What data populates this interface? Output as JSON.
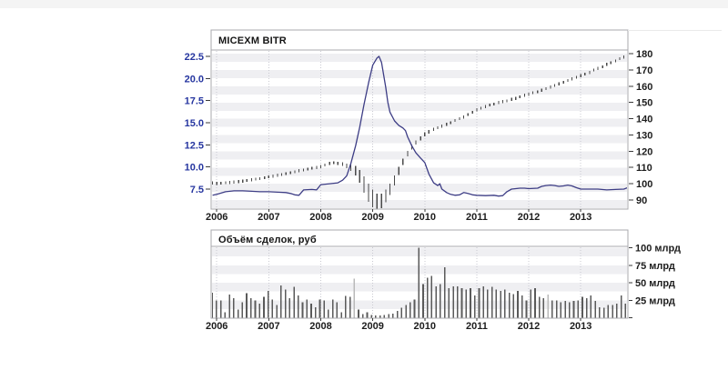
{
  "page": {
    "background": "#ffffff",
    "top_strip_color": "#f4f4f4"
  },
  "chart_data": [
    {
      "type": "line",
      "title": "MICEXM BITR",
      "x_tick_labels": [
        "2006",
        "2007",
        "2008",
        "2009",
        "2010",
        "2011",
        "2012",
        "2013"
      ],
      "x_tick_values": [
        2006,
        2007,
        2008,
        2009,
        2010,
        2011,
        2012,
        2013
      ],
      "x_range": [
        2005.9,
        2013.95
      ],
      "grid": "vertical-dotted, horizontal zebra stripes",
      "left_axis": {
        "tick_labels": [
          "22.5",
          "20.0",
          "17.5",
          "15.0",
          "12.5",
          "10.0",
          "7.5"
        ],
        "tick_values": [
          22.5,
          20.0,
          17.5,
          15.0,
          12.5,
          10.0,
          7.5
        ],
        "range": [
          5.4,
          23.2
        ],
        "label_color": "#2636a0"
      },
      "right_axis": {
        "tick_labels": [
          "180",
          "170",
          "160",
          "150",
          "140",
          "130",
          "120",
          "110",
          "100",
          "90"
        ],
        "tick_values": [
          180,
          170,
          160,
          150,
          140,
          130,
          120,
          110,
          100,
          90
        ],
        "range": [
          84,
          185
        ],
        "label_color": "#1c1c1c"
      },
      "series": [
        {
          "name": "rate-line",
          "style": "solid-line",
          "axis": "left",
          "color": "#3d3d85",
          "points": [
            [
              2005.92,
              6.8
            ],
            [
              2006.0,
              6.9
            ],
            [
              2006.17,
              7.2
            ],
            [
              2006.33,
              7.3
            ],
            [
              2006.5,
              7.3
            ],
            [
              2006.67,
              7.25
            ],
            [
              2006.83,
              7.2
            ],
            [
              2007.0,
              7.2
            ],
            [
              2007.17,
              7.15
            ],
            [
              2007.33,
              7.1
            ],
            [
              2007.42,
              7.0
            ],
            [
              2007.5,
              6.85
            ],
            [
              2007.58,
              6.8
            ],
            [
              2007.67,
              7.4
            ],
            [
              2007.83,
              7.45
            ],
            [
              2007.92,
              7.4
            ],
            [
              2008.0,
              8.0
            ],
            [
              2008.17,
              8.1
            ],
            [
              2008.33,
              8.2
            ],
            [
              2008.42,
              8.5
            ],
            [
              2008.5,
              9.0
            ],
            [
              2008.58,
              10.4
            ],
            [
              2008.67,
              12.4
            ],
            [
              2008.75,
              14.5
            ],
            [
              2008.83,
              17.0
            ],
            [
              2008.92,
              19.5
            ],
            [
              2009.0,
              21.5
            ],
            [
              2009.08,
              22.3
            ],
            [
              2009.12,
              22.5
            ],
            [
              2009.17,
              21.8
            ],
            [
              2009.25,
              19.0
            ],
            [
              2009.29,
              17.3
            ],
            [
              2009.33,
              16.2
            ],
            [
              2009.42,
              15.2
            ],
            [
              2009.5,
              14.7
            ],
            [
              2009.58,
              14.4
            ],
            [
              2009.63,
              14.1
            ],
            [
              2009.67,
              13.4
            ],
            [
              2009.75,
              12.4
            ],
            [
              2009.83,
              11.6
            ],
            [
              2009.92,
              11.0
            ],
            [
              2010.0,
              10.5
            ],
            [
              2010.08,
              9.2
            ],
            [
              2010.17,
              8.2
            ],
            [
              2010.25,
              7.9
            ],
            [
              2010.29,
              8.1
            ],
            [
              2010.33,
              7.5
            ],
            [
              2010.42,
              7.1
            ],
            [
              2010.5,
              6.9
            ],
            [
              2010.58,
              6.8
            ],
            [
              2010.67,
              6.85
            ],
            [
              2010.75,
              7.1
            ],
            [
              2010.83,
              7.0
            ],
            [
              2010.92,
              6.85
            ],
            [
              2011.0,
              6.8
            ],
            [
              2011.17,
              6.75
            ],
            [
              2011.33,
              6.8
            ],
            [
              2011.42,
              6.7
            ],
            [
              2011.5,
              6.75
            ],
            [
              2011.58,
              7.2
            ],
            [
              2011.67,
              7.5
            ],
            [
              2011.75,
              7.55
            ],
            [
              2011.83,
              7.6
            ],
            [
              2011.92,
              7.6
            ],
            [
              2012.0,
              7.55
            ],
            [
              2012.17,
              7.6
            ],
            [
              2012.25,
              7.8
            ],
            [
              2012.33,
              7.9
            ],
            [
              2012.42,
              7.95
            ],
            [
              2012.5,
              7.9
            ],
            [
              2012.58,
              7.8
            ],
            [
              2012.67,
              7.85
            ],
            [
              2012.75,
              7.95
            ],
            [
              2012.83,
              7.85
            ],
            [
              2012.92,
              7.65
            ],
            [
              2013.0,
              7.5
            ],
            [
              2013.17,
              7.5
            ],
            [
              2013.33,
              7.5
            ],
            [
              2013.5,
              7.4
            ],
            [
              2013.67,
              7.45
            ],
            [
              2013.83,
              7.5
            ],
            [
              2013.92,
              7.7
            ]
          ]
        },
        {
          "name": "index-dashes",
          "style": "vertical-dashes",
          "axis": "right",
          "color": "#4a4a4a",
          "default_dash_range": 1.8,
          "points": [
            [
              2005.92,
              100.5
            ],
            [
              2006.0,
              100.2
            ],
            [
              2006.08,
              100.4
            ],
            [
              2006.17,
              100.6
            ],
            [
              2006.25,
              100.8
            ],
            [
              2006.33,
              101
            ],
            [
              2006.42,
              101.3
            ],
            [
              2006.5,
              101.6
            ],
            [
              2006.58,
              102
            ],
            [
              2006.67,
              102.4
            ],
            [
              2006.75,
              102.8
            ],
            [
              2006.83,
              103.2
            ],
            [
              2006.92,
              103.7
            ],
            [
              2007.0,
              104.2
            ],
            [
              2007.08,
              104.7
            ],
            [
              2007.17,
              105.2
            ],
            [
              2007.25,
              105.7
            ],
            [
              2007.33,
              106.2
            ],
            [
              2007.42,
              106.8
            ],
            [
              2007.5,
              107.4
            ],
            [
              2007.58,
              108
            ],
            [
              2007.67,
              108.5
            ],
            [
              2007.75,
              109
            ],
            [
              2007.83,
              109.5
            ],
            [
              2007.92,
              110
            ],
            [
              2008.0,
              110.5
            ],
            [
              2008.08,
              111.5
            ],
            [
              2008.17,
              112.5
            ],
            [
              2008.25,
              113
            ],
            [
              2008.33,
              112.5
            ],
            [
              2008.42,
              112,
              2.2
            ],
            [
              2008.5,
              111,
              2.6
            ],
            [
              2008.58,
              110,
              4
            ],
            [
              2008.67,
              108,
              6
            ],
            [
              2008.75,
              104.5,
              8
            ],
            [
              2008.83,
              99.5,
              10
            ],
            [
              2008.92,
              94.5,
              11
            ],
            [
              2009.0,
              91,
              11
            ],
            [
              2009.08,
              89,
              10
            ],
            [
              2009.17,
              89.5,
              9
            ],
            [
              2009.25,
              92.5,
              8
            ],
            [
              2009.33,
              96.5,
              7
            ],
            [
              2009.42,
              102,
              6
            ],
            [
              2009.5,
              108,
              5
            ],
            [
              2009.58,
              113.5,
              4
            ],
            [
              2009.67,
              118.5,
              3.5
            ],
            [
              2009.75,
              122.5,
              3
            ],
            [
              2009.83,
              125.5,
              2.5
            ],
            [
              2009.92,
              128,
              2.5
            ],
            [
              2010.0,
              130.5,
              2.5
            ],
            [
              2010.08,
              132,
              2.2
            ],
            [
              2010.17,
              133.5
            ],
            [
              2010.25,
              134.5
            ],
            [
              2010.33,
              135.5
            ],
            [
              2010.42,
              136.5
            ],
            [
              2010.5,
              137.5
            ],
            [
              2010.58,
              139
            ],
            [
              2010.67,
              140
            ],
            [
              2010.75,
              141
            ],
            [
              2010.83,
              142.5
            ],
            [
              2010.92,
              144
            ],
            [
              2011.0,
              145.5
            ],
            [
              2011.08,
              146.5
            ],
            [
              2011.17,
              147.5
            ],
            [
              2011.25,
              148.5
            ],
            [
              2011.33,
              149
            ],
            [
              2011.42,
              150
            ],
            [
              2011.5,
              150.5
            ],
            [
              2011.58,
              151
            ],
            [
              2011.67,
              152
            ],
            [
              2011.75,
              152.5
            ],
            [
              2011.83,
              153.5
            ],
            [
              2011.92,
              154.5
            ],
            [
              2012.0,
              155
            ],
            [
              2012.08,
              156
            ],
            [
              2012.17,
              156.5
            ],
            [
              2012.25,
              157.5
            ],
            [
              2012.33,
              158.5
            ],
            [
              2012.42,
              159.5
            ],
            [
              2012.5,
              160.5
            ],
            [
              2012.58,
              161.5
            ],
            [
              2012.67,
              162.5
            ],
            [
              2012.75,
              163.5
            ],
            [
              2012.83,
              164.5
            ],
            [
              2012.92,
              165.5
            ],
            [
              2013.0,
              166.5
            ],
            [
              2013.08,
              167.5
            ],
            [
              2013.17,
              168.5
            ],
            [
              2013.25,
              170
            ],
            [
              2013.33,
              171
            ],
            [
              2013.42,
              172
            ],
            [
              2013.5,
              173.5
            ],
            [
              2013.58,
              174.5
            ],
            [
              2013.67,
              175.5
            ],
            [
              2013.75,
              177
            ],
            [
              2013.83,
              178
            ],
            [
              2013.92,
              179.5
            ]
          ]
        }
      ]
    },
    {
      "type": "bar",
      "title": "Объём сделок, руб",
      "x_tick_labels": [
        "2006",
        "2007",
        "2008",
        "2009",
        "2010",
        "2011",
        "2012",
        "2013"
      ],
      "x_tick_values": [
        2006,
        2007,
        2008,
        2009,
        2010,
        2011,
        2012,
        2013
      ],
      "right_axis": {
        "tick_labels": [
          "100 млрд",
          "75 млрд",
          "50 млрд",
          "25 млрд"
        ],
        "tick_values": [
          100,
          75,
          50,
          25
        ],
        "range": [
          0,
          105
        ],
        "label_color": "#1c1c1c"
      },
      "bars_start": 2005.917,
      "bars_step_years": 0.08333,
      "bar_color": "#5a5a5a",
      "light_bar_color": "#b9b9b9",
      "light_indices": [
        33,
        78
      ],
      "values": [
        36,
        25,
        25,
        8,
        33,
        28,
        12,
        22,
        35,
        28,
        25,
        20,
        30,
        38,
        26,
        18,
        46,
        40,
        28,
        44,
        32,
        22,
        26,
        20,
        15,
        26,
        25,
        12,
        26,
        22,
        8,
        31,
        30,
        56,
        12,
        5,
        8,
        4,
        3,
        3,
        4,
        5,
        6,
        10,
        14,
        18,
        22,
        26,
        100,
        48,
        57,
        60,
        45,
        48,
        72,
        42,
        45,
        45,
        42,
        40,
        42,
        32,
        42,
        45,
        40,
        44,
        40,
        38,
        40,
        36,
        34,
        38,
        32,
        25,
        40,
        42,
        30,
        28,
        33,
        25,
        25,
        22,
        24,
        22,
        24,
        25,
        30,
        28,
        32,
        24,
        15,
        14,
        18,
        18,
        20,
        32,
        20
      ]
    }
  ]
}
